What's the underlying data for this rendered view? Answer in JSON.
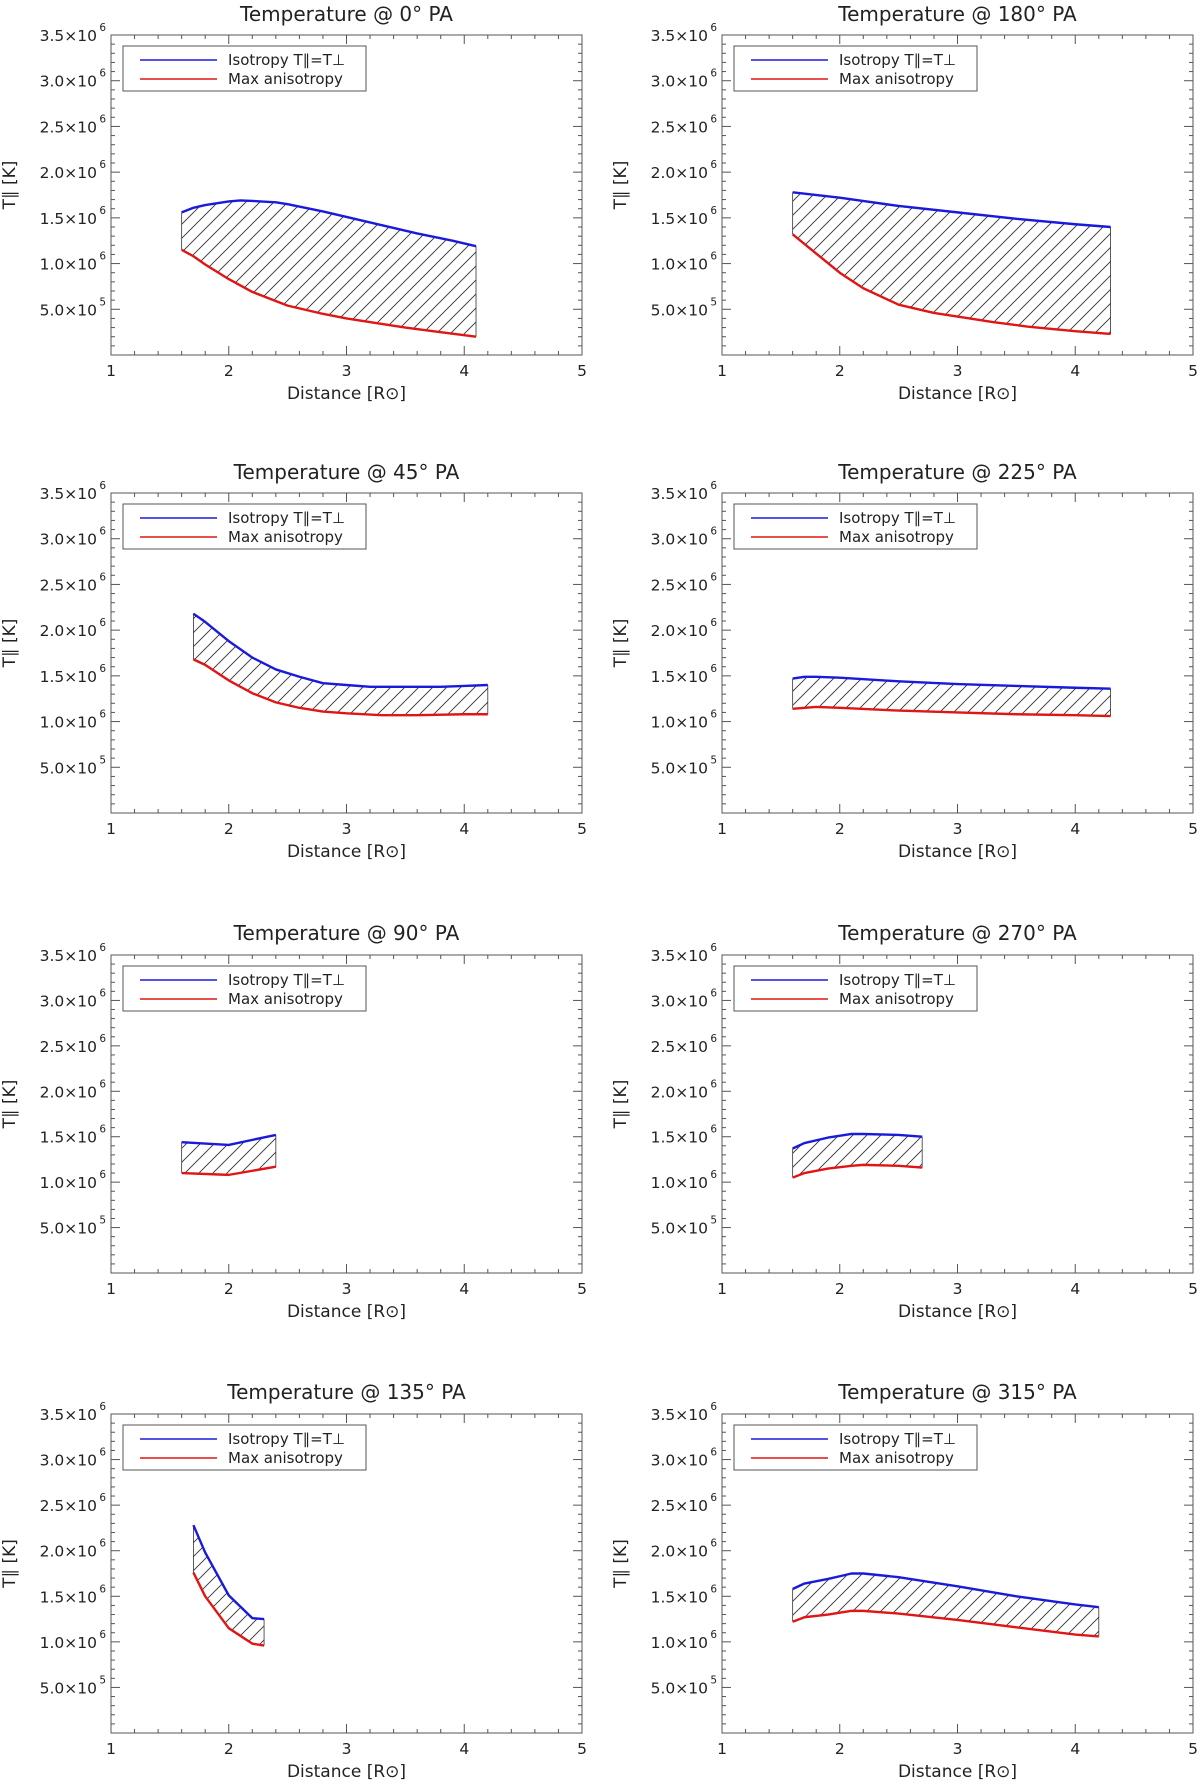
{
  "common": {
    "xlabel": "Distance [R⊙]",
    "ylabel": "T∥ [K]",
    "xlim": [
      1,
      5
    ],
    "ylim": [
      0,
      3500000
    ],
    "x_ticks": [
      "1",
      "2",
      "3",
      "4",
      "5"
    ],
    "y_ticks": [
      {
        "mant": "5.0×10",
        "exp": "5"
      },
      {
        "mant": "1.0×10",
        "exp": "6"
      },
      {
        "mant": "1.5×10",
        "exp": "6"
      },
      {
        "mant": "2.0×10",
        "exp": "6"
      },
      {
        "mant": "2.5×10",
        "exp": "6"
      },
      {
        "mant": "3.0×10",
        "exp": "6"
      },
      {
        "mant": "3.5×10",
        "exp": "6"
      }
    ],
    "legend": [
      "Isotropy T∥=T⊥",
      "Max anisotropy"
    ],
    "colors": {
      "isotropy": "#1a1adb",
      "anisotropy": "#e01515",
      "hatch": "#333333",
      "axis": "#555555"
    }
  },
  "chart_data": [
    {
      "type": "line",
      "title": "Temperature @ 0° PA",
      "xlabel": "Distance [R⊙]",
      "ylabel": "T∥ [K]",
      "xlim": [
        1,
        5
      ],
      "ylim": [
        0,
        3500000
      ],
      "series": [
        {
          "name": "Isotropy T∥=T⊥",
          "x": [
            1.6,
            1.7,
            1.8,
            2.0,
            2.1,
            2.2,
            2.4,
            2.5,
            2.8,
            3.0,
            3.3,
            3.6,
            3.9,
            4.1
          ],
          "values": [
            1560000,
            1610000,
            1640000,
            1680000,
            1690000,
            1685000,
            1670000,
            1650000,
            1570000,
            1510000,
            1420000,
            1330000,
            1250000,
            1190000
          ]
        },
        {
          "name": "Max anisotropy",
          "x": [
            1.6,
            1.7,
            1.8,
            2.0,
            2.2,
            2.5,
            2.8,
            3.0,
            3.3,
            3.5,
            3.8,
            4.1
          ],
          "values": [
            1150000,
            1080000,
            990000,
            830000,
            690000,
            540000,
            450000,
            400000,
            340000,
            300000,
            250000,
            200000
          ]
        }
      ]
    },
    {
      "type": "line",
      "title": "Temperature @ 180° PA",
      "xlabel": "Distance [R⊙]",
      "ylabel": "T∥ [K]",
      "xlim": [
        1,
        5
      ],
      "ylim": [
        0,
        3500000
      ],
      "series": [
        {
          "name": "Isotropy T∥=T⊥",
          "x": [
            1.6,
            2.0,
            2.5,
            3.0,
            3.5,
            4.0,
            4.3
          ],
          "values": [
            1780000,
            1720000,
            1630000,
            1560000,
            1490000,
            1430000,
            1400000
          ]
        },
        {
          "name": "Max anisotropy",
          "x": [
            1.6,
            1.8,
            2.0,
            2.2,
            2.5,
            2.8,
            3.0,
            3.3,
            3.6,
            4.0,
            4.3
          ],
          "values": [
            1320000,
            1110000,
            900000,
            730000,
            550000,
            460000,
            420000,
            360000,
            310000,
            260000,
            230000
          ]
        }
      ]
    },
    {
      "type": "line",
      "title": "Temperature @ 45° PA",
      "xlabel": "Distance [R⊙]",
      "ylabel": "T∥ [K]",
      "xlim": [
        1,
        5
      ],
      "ylim": [
        0,
        3500000
      ],
      "series": [
        {
          "name": "Isotropy T∥=T⊥",
          "x": [
            1.7,
            1.8,
            2.0,
            2.2,
            2.4,
            2.6,
            2.8,
            3.0,
            3.2,
            3.5,
            3.8,
            4.0,
            4.2
          ],
          "values": [
            2180000,
            2090000,
            1880000,
            1700000,
            1570000,
            1490000,
            1420000,
            1400000,
            1380000,
            1380000,
            1380000,
            1390000,
            1400000
          ]
        },
        {
          "name": "Max anisotropy",
          "x": [
            1.7,
            1.8,
            2.0,
            2.2,
            2.4,
            2.6,
            2.8,
            3.0,
            3.3,
            3.6,
            4.0,
            4.2
          ],
          "values": [
            1680000,
            1620000,
            1450000,
            1310000,
            1210000,
            1150000,
            1110000,
            1090000,
            1070000,
            1070000,
            1080000,
            1080000
          ]
        }
      ]
    },
    {
      "type": "line",
      "title": "Temperature @ 225° PA",
      "xlabel": "Distance [R⊙]",
      "ylabel": "T∥ [K]",
      "xlim": [
        1,
        5
      ],
      "ylim": [
        0,
        3500000
      ],
      "series": [
        {
          "name": "Isotropy T∥=T⊥",
          "x": [
            1.6,
            1.7,
            1.8,
            2.0,
            2.5,
            3.0,
            3.5,
            4.0,
            4.3
          ],
          "values": [
            1470000,
            1490000,
            1490000,
            1480000,
            1440000,
            1410000,
            1390000,
            1370000,
            1360000
          ]
        },
        {
          "name": "Max anisotropy",
          "x": [
            1.6,
            1.7,
            1.8,
            2.0,
            2.5,
            3.0,
            3.5,
            4.0,
            4.3
          ],
          "values": [
            1140000,
            1150000,
            1160000,
            1150000,
            1120000,
            1100000,
            1080000,
            1070000,
            1060000
          ]
        }
      ]
    },
    {
      "type": "line",
      "title": "Temperature @ 90° PA",
      "xlabel": "Distance [R⊙]",
      "ylabel": "T∥ [K]",
      "xlim": [
        1,
        5
      ],
      "ylim": [
        0,
        3500000
      ],
      "series": [
        {
          "name": "Isotropy T∥=T⊥",
          "x": [
            1.6,
            2.0,
            2.4
          ],
          "values": [
            1440000,
            1410000,
            1520000
          ]
        },
        {
          "name": "Max anisotropy",
          "x": [
            1.6,
            2.0,
            2.4
          ],
          "values": [
            1100000,
            1080000,
            1170000
          ]
        }
      ]
    },
    {
      "type": "line",
      "title": "Temperature @ 270° PA",
      "xlabel": "Distance [R⊙]",
      "ylabel": "T∥ [K]",
      "xlim": [
        1,
        5
      ],
      "ylim": [
        0,
        3500000
      ],
      "series": [
        {
          "name": "Isotropy T∥=T⊥",
          "x": [
            1.6,
            1.7,
            1.9,
            2.1,
            2.2,
            2.5,
            2.7
          ],
          "values": [
            1370000,
            1430000,
            1490000,
            1530000,
            1530000,
            1520000,
            1500000
          ]
        },
        {
          "name": "Max anisotropy",
          "x": [
            1.6,
            1.7,
            1.9,
            2.1,
            2.2,
            2.5,
            2.7
          ],
          "values": [
            1050000,
            1100000,
            1150000,
            1180000,
            1190000,
            1180000,
            1160000
          ]
        }
      ]
    },
    {
      "type": "line",
      "title": "Temperature @ 135° PA",
      "xlabel": "Distance [R⊙]",
      "ylabel": "T∥ [K]",
      "xlim": [
        1,
        5
      ],
      "ylim": [
        0,
        3500000
      ],
      "series": [
        {
          "name": "Isotropy T∥=T⊥",
          "x": [
            1.7,
            1.8,
            2.0,
            2.2,
            2.3
          ],
          "values": [
            2280000,
            1980000,
            1510000,
            1260000,
            1250000
          ]
        },
        {
          "name": "Max anisotropy",
          "x": [
            1.7,
            1.8,
            2.0,
            2.2,
            2.3
          ],
          "values": [
            1760000,
            1500000,
            1150000,
            980000,
            960000
          ]
        }
      ]
    },
    {
      "type": "line",
      "title": "Temperature @ 315° PA",
      "xlabel": "Distance [R⊙]",
      "ylabel": "T∥ [K]",
      "xlim": [
        1,
        5
      ],
      "ylim": [
        0,
        3500000
      ],
      "series": [
        {
          "name": "Isotropy T∥=T⊥",
          "x": [
            1.6,
            1.7,
            1.9,
            2.0,
            2.1,
            2.2,
            2.5,
            3.0,
            3.5,
            4.0,
            4.2
          ],
          "values": [
            1580000,
            1640000,
            1690000,
            1720000,
            1750000,
            1750000,
            1710000,
            1610000,
            1500000,
            1410000,
            1380000
          ]
        },
        {
          "name": "Max anisotropy",
          "x": [
            1.6,
            1.7,
            1.9,
            2.0,
            2.1,
            2.2,
            2.5,
            3.0,
            3.5,
            4.0,
            4.2
          ],
          "values": [
            1220000,
            1270000,
            1300000,
            1320000,
            1340000,
            1340000,
            1310000,
            1240000,
            1160000,
            1080000,
            1060000
          ]
        }
      ]
    }
  ]
}
